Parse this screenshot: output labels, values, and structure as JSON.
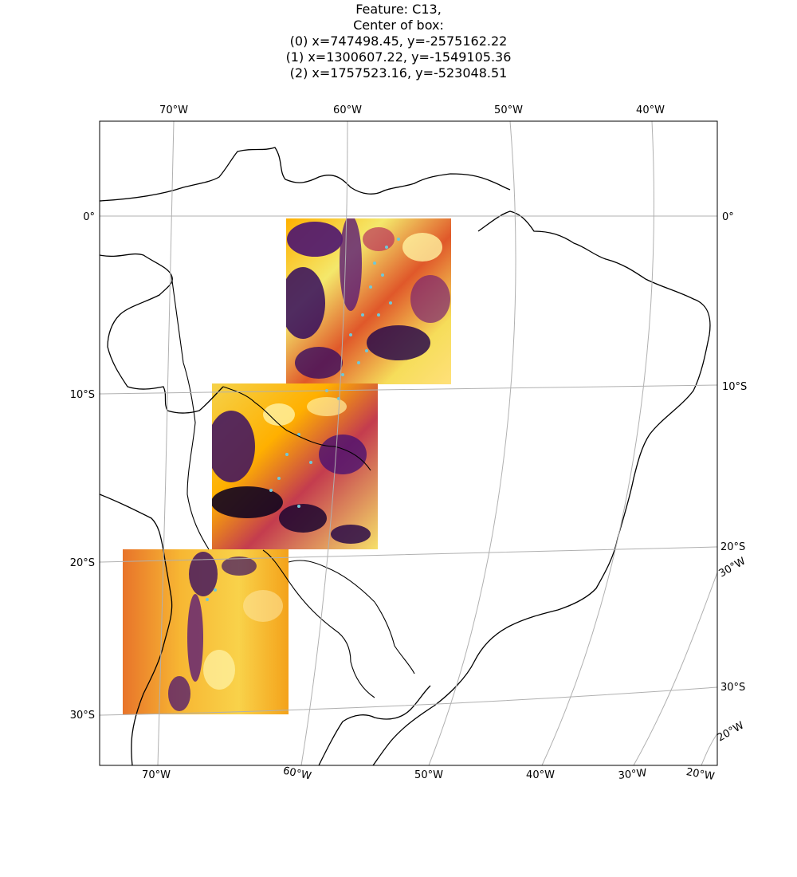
{
  "title_lines": [
    "Feature: C13,",
    "Center of box:",
    "(0) x=747498.45, y=-2575162.22",
    "(1) x=1300607.22, y=-1549105.36",
    "(2) x=1757523.16, y=-523048.51"
  ],
  "tick_labels": {
    "top": [
      "70°W",
      "60°W",
      "50°W",
      "40°W"
    ],
    "left": [
      "0°",
      "10°S",
      "20°S",
      "30°S"
    ],
    "right": [
      "0°",
      "10°S",
      "20°S",
      "30°W",
      "30°S",
      "20°W"
    ],
    "bottom": [
      "70°W",
      "60°W",
      "50°W",
      "40°W",
      "30°W",
      "20°W"
    ]
  },
  "boxes": [
    {
      "index": 0,
      "center_x": 747498.45,
      "center_y": -2575162.22
    },
    {
      "index": 1,
      "center_x": 1300607.22,
      "center_y": -1549105.36
    },
    {
      "index": 2,
      "center_x": 1757523.16,
      "center_y": -523048.51
    }
  ],
  "colors": {
    "colormap": "inferno",
    "feature_overlay": "#6fc8d8",
    "gridlines": "#b0b0b0",
    "coastline": "#000000"
  }
}
